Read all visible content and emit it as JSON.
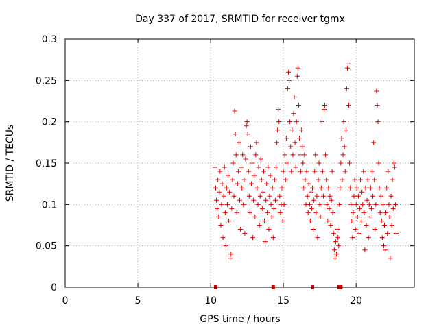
{
  "chart_data": {
    "type": "scatter",
    "title": "Day 337 of 2017, SRMTID for receiver tgmx",
    "xlabel": "GPS time / hours",
    "ylabel": "SRMTID / TECUs",
    "xlim": [
      0,
      24
    ],
    "ylim": [
      0,
      0.3
    ],
    "xticks": [
      "0",
      "5",
      "10",
      "15",
      "20"
    ],
    "xtick_values": [
      0,
      5,
      10,
      15,
      20
    ],
    "yticks": [
      "0",
      "0.05",
      "0.1",
      "0.15",
      "0.2",
      "0.25",
      "0.3"
    ],
    "ytick_values": [
      0,
      0.05,
      0.1,
      0.15,
      0.2,
      0.25,
      0.3
    ],
    "grid": true,
    "marker": "plus",
    "series_color": "#e00000",
    "series": [
      {
        "name": "SRMTID",
        "points": [
          [
            10.3,
            0.145
          ],
          [
            10.35,
            0.12
          ],
          [
            10.4,
            0.105
          ],
          [
            10.45,
            0.095
          ],
          [
            10.5,
            0.13
          ],
          [
            10.55,
            0.085
          ],
          [
            10.6,
            0.115
          ],
          [
            10.65,
            0.14
          ],
          [
            10.7,
            0.075
          ],
          [
            10.75,
            0.1
          ],
          [
            10.8,
            0.125
          ],
          [
            10.85,
            0.06
          ],
          [
            10.9,
            0.11
          ],
          [
            10.95,
            0.145
          ],
          [
            11.0,
            0.09
          ],
          [
            11.05,
            0.05
          ],
          [
            11.1,
            0.12
          ],
          [
            11.15,
            0.1
          ],
          [
            11.2,
            0.135
          ],
          [
            11.25,
            0.08
          ],
          [
            11.3,
            0.115
          ],
          [
            11.35,
            0.035
          ],
          [
            11.4,
            0.04
          ],
          [
            11.45,
            0.095
          ],
          [
            11.5,
            0.13
          ],
          [
            11.55,
            0.15
          ],
          [
            11.6,
            0.11
          ],
          [
            11.65,
            0.213
          ],
          [
            11.7,
            0.185
          ],
          [
            11.75,
            0.16
          ],
          [
            11.8,
            0.09
          ],
          [
            11.85,
            0.125
          ],
          [
            11.9,
            0.14
          ],
          [
            11.95,
            0.175
          ],
          [
            12.0,
            0.105
          ],
          [
            12.05,
            0.07
          ],
          [
            12.1,
            0.145
          ],
          [
            12.15,
            0.12
          ],
          [
            12.2,
            0.16
          ],
          [
            12.25,
            0.1
          ],
          [
            12.3,
            0.13
          ],
          [
            12.35,
            0.065
          ],
          [
            12.4,
            0.155
          ],
          [
            12.45,
            0.195
          ],
          [
            12.5,
            0.2
          ],
          [
            12.55,
            0.185
          ],
          [
            12.6,
            0.14
          ],
          [
            12.65,
            0.11
          ],
          [
            12.7,
            0.09
          ],
          [
            12.75,
            0.17
          ],
          [
            12.8,
            0.125
          ],
          [
            12.85,
            0.15
          ],
          [
            12.9,
            0.06
          ],
          [
            12.95,
            0.105
          ],
          [
            13.0,
            0.135
          ],
          [
            13.05,
            0.085
          ],
          [
            13.1,
            0.16
          ],
          [
            13.15,
            0.175
          ],
          [
            13.2,
            0.12
          ],
          [
            13.25,
            0.1
          ],
          [
            13.3,
            0.145
          ],
          [
            13.35,
            0.075
          ],
          [
            13.4,
            0.11
          ],
          [
            13.45,
            0.155
          ],
          [
            13.5,
            0.13
          ],
          [
            13.55,
            0.095
          ],
          [
            13.6,
            0.115
          ],
          [
            13.65,
            0.14
          ],
          [
            13.7,
            0.08
          ],
          [
            13.75,
            0.055
          ],
          [
            13.8,
            0.105
          ],
          [
            13.85,
            0.125
          ],
          [
            13.9,
            0.09
          ],
          [
            13.95,
            0.145
          ],
          [
            14.0,
            0.07
          ],
          [
            14.05,
            0.11
          ],
          [
            14.1,
            0.135
          ],
          [
            14.15,
            0.1
          ],
          [
            14.2,
            0.085
          ],
          [
            14.25,
            0.12
          ],
          [
            14.3,
            0.06
          ],
          [
            14.35,
            0.095
          ],
          [
            14.4,
            0.13
          ],
          [
            14.45,
            0.105
          ],
          [
            14.5,
            0.145
          ],
          [
            14.55,
            0.175
          ],
          [
            14.6,
            0.19
          ],
          [
            14.65,
            0.215
          ],
          [
            14.7,
            0.2
          ],
          [
            14.75,
            0.11
          ],
          [
            14.8,
            0.09
          ],
          [
            14.85,
            0.1
          ],
          [
            14.9,
            0.12
          ],
          [
            14.95,
            0.08
          ],
          [
            15.0,
            0.14
          ],
          [
            15.05,
            0.1
          ],
          [
            15.1,
            0.16
          ],
          [
            15.15,
            0.13
          ],
          [
            15.2,
            0.18
          ],
          [
            15.25,
            0.15
          ],
          [
            15.3,
            0.24
          ],
          [
            15.35,
            0.26
          ],
          [
            15.4,
            0.25
          ],
          [
            15.45,
            0.2
          ],
          [
            15.5,
            0.17
          ],
          [
            15.55,
            0.14
          ],
          [
            15.6,
            0.19
          ],
          [
            15.65,
            0.16
          ],
          [
            15.7,
            0.21
          ],
          [
            15.75,
            0.23
          ],
          [
            15.8,
            0.175
          ],
          [
            15.85,
            0.145
          ],
          [
            15.9,
            0.2
          ],
          [
            15.95,
            0.255
          ],
          [
            16.0,
            0.265
          ],
          [
            16.05,
            0.22
          ],
          [
            16.1,
            0.18
          ],
          [
            16.15,
            0.16
          ],
          [
            16.2,
            0.14
          ],
          [
            16.25,
            0.19
          ],
          [
            16.3,
            0.17
          ],
          [
            16.35,
            0.15
          ],
          [
            16.4,
            0.12
          ],
          [
            16.45,
            0.16
          ],
          [
            16.5,
            0.13
          ],
          [
            16.55,
            0.1
          ],
          [
            16.6,
            0.14
          ],
          [
            16.65,
            0.11
          ],
          [
            16.7,
            0.09
          ],
          [
            16.75,
            0.125
          ],
          [
            16.8,
            0.1
          ],
          [
            16.85,
            0.08
          ],
          [
            16.9,
            0.115
          ],
          [
            16.95,
            0.095
          ],
          [
            17.0,
            0.12
          ],
          [
            17.05,
            0.07
          ],
          [
            17.1,
            0.105
          ],
          [
            17.15,
            0.14
          ],
          [
            17.2,
            0.16
          ],
          [
            17.25,
            0.09
          ],
          [
            17.3,
            0.11
          ],
          [
            17.35,
            0.06
          ],
          [
            17.4,
            0.13
          ],
          [
            17.45,
            0.15
          ],
          [
            17.5,
            0.1
          ],
          [
            17.55,
            0.085
          ],
          [
            17.6,
            0.12
          ],
          [
            17.65,
            0.2
          ],
          [
            17.7,
            0.14
          ],
          [
            17.75,
            0.11
          ],
          [
            17.8,
            0.215
          ],
          [
            17.85,
            0.22
          ],
          [
            17.9,
            0.16
          ],
          [
            17.95,
            0.13
          ],
          [
            18.0,
            0.1
          ],
          [
            18.05,
            0.08
          ],
          [
            18.1,
            0.12
          ],
          [
            18.15,
            0.095
          ],
          [
            18.2,
            0.11
          ],
          [
            18.25,
            0.075
          ],
          [
            18.3,
            0.105
          ],
          [
            18.35,
            0.14
          ],
          [
            18.4,
            0.09
          ],
          [
            18.45,
            0.065
          ],
          [
            18.5,
            0.045
          ],
          [
            18.55,
            0.035
          ],
          [
            18.6,
            0.055
          ],
          [
            18.65,
            0.04
          ],
          [
            18.7,
            0.07
          ],
          [
            18.75,
            0.06
          ],
          [
            18.8,
            0.05
          ],
          [
            18.85,
            0.1
          ],
          [
            18.9,
            0.12
          ],
          [
            18.95,
            0.15
          ],
          [
            19.0,
            0.18
          ],
          [
            19.05,
            0.13
          ],
          [
            19.1,
            0.16
          ],
          [
            19.15,
            0.2
          ],
          [
            19.2,
            0.17
          ],
          [
            19.25,
            0.14
          ],
          [
            19.3,
            0.19
          ],
          [
            19.35,
            0.24
          ],
          [
            19.4,
            0.265
          ],
          [
            19.45,
            0.27
          ],
          [
            19.5,
            0.22
          ],
          [
            19.55,
            0.15
          ],
          [
            19.6,
            0.12
          ],
          [
            19.65,
            0.1
          ],
          [
            19.7,
            0.08
          ],
          [
            19.75,
            0.06
          ],
          [
            19.8,
            0.09
          ],
          [
            19.85,
            0.11
          ],
          [
            19.9,
            0.13
          ],
          [
            19.95,
            0.07
          ],
          [
            20.0,
            0.1
          ],
          [
            20.05,
            0.12
          ],
          [
            20.1,
            0.085
          ],
          [
            20.15,
            0.11
          ],
          [
            20.2,
            0.065
          ],
          [
            20.25,
            0.095
          ],
          [
            20.3,
            0.13
          ],
          [
            20.35,
            0.08
          ],
          [
            20.4,
            0.115
          ],
          [
            20.45,
            0.1
          ],
          [
            20.5,
            0.14
          ],
          [
            20.55,
            0.09
          ],
          [
            20.6,
            0.045
          ],
          [
            20.65,
            0.12
          ],
          [
            20.7,
            0.075
          ],
          [
            20.75,
            0.105
          ],
          [
            20.8,
            0.13
          ],
          [
            20.85,
            0.06
          ],
          [
            20.9,
            0.1
          ],
          [
            20.95,
            0.085
          ],
          [
            21.0,
            0.12
          ],
          [
            21.05,
            0.095
          ],
          [
            21.1,
            0.14
          ],
          [
            21.15,
            0.11
          ],
          [
            21.2,
            0.175
          ],
          [
            21.25,
            0.13
          ],
          [
            21.3,
            0.07
          ],
          [
            21.35,
            0.1
          ],
          [
            21.4,
            0.237
          ],
          [
            21.45,
            0.22
          ],
          [
            21.5,
            0.2
          ],
          [
            21.55,
            0.15
          ],
          [
            21.6,
            0.12
          ],
          [
            21.65,
            0.09
          ],
          [
            21.7,
            0.11
          ],
          [
            21.75,
            0.08
          ],
          [
            21.8,
            0.06
          ],
          [
            21.85,
            0.1
          ],
          [
            21.9,
            0.05
          ],
          [
            21.95,
            0.075
          ],
          [
            22.0,
            0.045
          ],
          [
            22.05,
            0.09
          ],
          [
            22.1,
            0.12
          ],
          [
            22.15,
            0.065
          ],
          [
            22.2,
            0.14
          ],
          [
            22.25,
            0.1
          ],
          [
            22.3,
            0.085
          ],
          [
            22.35,
            0.035
          ],
          [
            22.4,
            0.11
          ],
          [
            22.45,
            0.075
          ],
          [
            22.5,
            0.13
          ],
          [
            22.55,
            0.095
          ],
          [
            22.6,
            0.15
          ],
          [
            22.65,
            0.145
          ],
          [
            22.7,
            0.1
          ],
          [
            22.75,
            0.065
          ]
        ]
      }
    ],
    "baseline_markers": [
      10.35,
      14.3,
      17.0,
      18.8,
      18.95
    ]
  }
}
